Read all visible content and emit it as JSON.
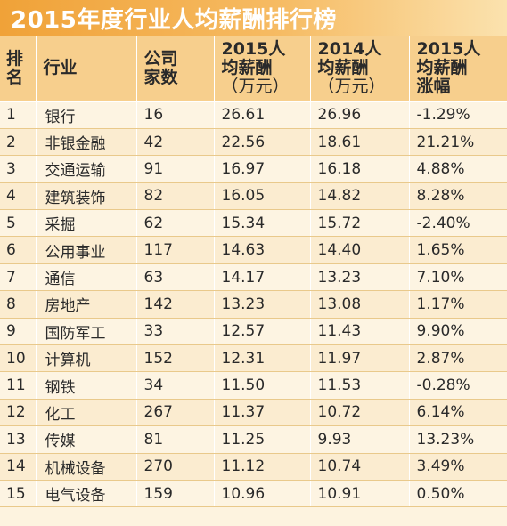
{
  "title": "2015年度行业人均薪酬排行榜",
  "headers": {
    "rank": [
      "排",
      "名"
    ],
    "industry": "行业",
    "company_count": [
      "公司",
      "家数"
    ],
    "salary_2015": [
      "2015人",
      "均薪酬",
      "（万元）"
    ],
    "salary_2014": [
      "2014人",
      "均薪酬",
      "（万元）"
    ],
    "growth": [
      "2015人",
      "均薪酬",
      "涨幅"
    ]
  },
  "rows": [
    {
      "rank": "1",
      "industry": "银行",
      "count": "16",
      "s2015": "26.61",
      "s2014": "26.96",
      "growth": "-1.29%"
    },
    {
      "rank": "2",
      "industry": "非银金融",
      "count": "42",
      "s2015": "22.56",
      "s2014": "18.61",
      "growth": "21.21%"
    },
    {
      "rank": "3",
      "industry": "交通运输",
      "count": "91",
      "s2015": "16.97",
      "s2014": "16.18",
      "growth": "4.88%"
    },
    {
      "rank": "4",
      "industry": "建筑装饰",
      "count": "82",
      "s2015": "16.05",
      "s2014": "14.82",
      "growth": "8.28%"
    },
    {
      "rank": "5",
      "industry": "采掘",
      "count": "62",
      "s2015": "15.34",
      "s2014": "15.72",
      "growth": "-2.40%"
    },
    {
      "rank": "6",
      "industry": "公用事业",
      "count": "117",
      "s2015": "14.63",
      "s2014": "14.40",
      "growth": "1.65%"
    },
    {
      "rank": "7",
      "industry": "通信",
      "count": "63",
      "s2015": "14.17",
      "s2014": "13.23",
      "growth": "7.10%"
    },
    {
      "rank": "8",
      "industry": "房地产",
      "count": "142",
      "s2015": "13.23",
      "s2014": "13.08",
      "growth": "1.17%"
    },
    {
      "rank": "9",
      "industry": "国防军工",
      "count": "33",
      "s2015": "12.57",
      "s2014": "11.43",
      "growth": "9.90%"
    },
    {
      "rank": "10",
      "industry": "计算机",
      "count": "152",
      "s2015": "12.31",
      "s2014": "11.97",
      "growth": "2.87%"
    },
    {
      "rank": "11",
      "industry": "钢铁",
      "count": "34",
      "s2015": "11.50",
      "s2014": "11.53",
      "growth": "-0.28%"
    },
    {
      "rank": "12",
      "industry": "化工",
      "count": "267",
      "s2015": "11.37",
      "s2014": "10.72",
      "growth": "6.14%"
    },
    {
      "rank": "13",
      "industry": "传媒",
      "count": "81",
      "s2015": "11.25",
      "s2014": "9.93",
      "growth": "13.23%"
    },
    {
      "rank": "14",
      "industry": "机械设备",
      "count": "270",
      "s2015": "11.12",
      "s2014": "10.74",
      "growth": "3.49%"
    },
    {
      "rank": "15",
      "industry": "电气设备",
      "count": "159",
      "s2015": "10.96",
      "s2014": "10.91",
      "growth": "0.50%"
    }
  ]
}
